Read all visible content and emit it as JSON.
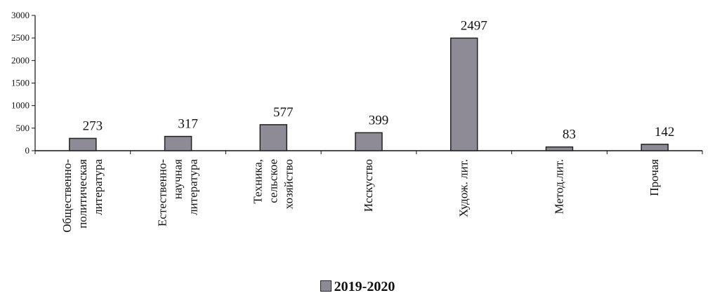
{
  "chart_data": {
    "type": "bar",
    "categories": [
      "Общественно-политическая литература",
      "Естественно-научная литература",
      "Техника, сельское хозяйство",
      "Исскуство",
      "Худож. лит.",
      "Метод.лит.",
      "Прочая"
    ],
    "category_lines": [
      [
        "Общественно-",
        "политическая",
        "литература"
      ],
      [
        "Естественно-",
        "научная",
        "литература"
      ],
      [
        "Техника,",
        "сельское",
        "хозяйство"
      ],
      [
        "Исскуство"
      ],
      [
        "Худож. лит."
      ],
      [
        "Метод.лит."
      ],
      [
        "Прочая"
      ]
    ],
    "series": [
      {
        "name": "2019-2020",
        "values": [
          273,
          317,
          577,
          399,
          2497,
          83,
          142
        ],
        "color": "#8e8b96"
      }
    ],
    "data_labels": [
      "273",
      "317",
      "577",
      "399",
      "2497",
      "83",
      "142"
    ],
    "yticks": [
      0,
      500,
      1000,
      1500,
      2000,
      2500,
      3000
    ],
    "ylim": [
      0,
      3000
    ],
    "grid": false,
    "legend_position": "bottom-center",
    "title": "",
    "xlabel": "",
    "ylabel": ""
  }
}
